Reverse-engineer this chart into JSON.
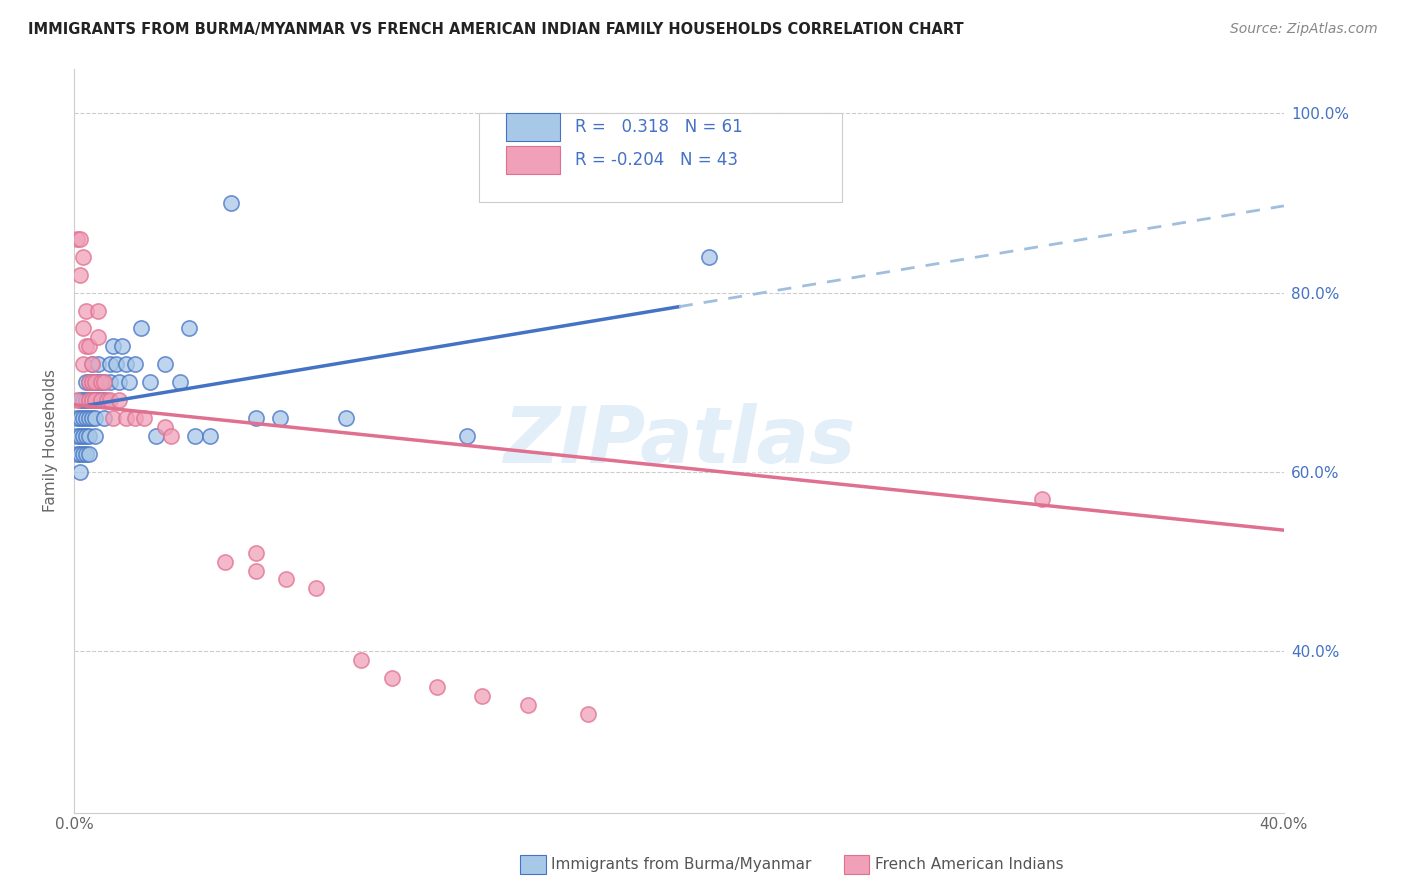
{
  "title": "IMMIGRANTS FROM BURMA/MYANMAR VS FRENCH AMERICAN INDIAN FAMILY HOUSEHOLDS CORRELATION CHART",
  "source": "Source: ZipAtlas.com",
  "xlabel_legend1": "Immigrants from Burma/Myanmar",
  "xlabel_legend2": "French American Indians",
  "ylabel": "Family Households",
  "r1": 0.318,
  "n1": 61,
  "r2": -0.204,
  "n2": 43,
  "xlim": [
    0.0,
    0.4
  ],
  "ylim": [
    0.22,
    1.05
  ],
  "xtick_vals": [
    0.0,
    0.1,
    0.2,
    0.3,
    0.4
  ],
  "xtick_labels": [
    "0.0%",
    "",
    "",
    "",
    "40.0%"
  ],
  "ytick_vals": [
    0.4,
    0.6,
    0.8,
    1.0
  ],
  "ytick_labels_right": [
    "40.0%",
    "60.0%",
    "80.0%",
    "100.0%"
  ],
  "color_blue": "#A8C8E8",
  "color_pink": "#F0A0B8",
  "color_blue_line": "#4472C4",
  "color_pink_line": "#E07090",
  "color_blue_dashed": "#A0BEDE",
  "background": "#FFFFFF",
  "watermark": "ZIPatlas",
  "blue_x": [
    0.001,
    0.001,
    0.001,
    0.002,
    0.002,
    0.002,
    0.002,
    0.002,
    0.003,
    0.003,
    0.003,
    0.003,
    0.004,
    0.004,
    0.004,
    0.004,
    0.004,
    0.005,
    0.005,
    0.005,
    0.005,
    0.005,
    0.006,
    0.006,
    0.006,
    0.006,
    0.007,
    0.007,
    0.007,
    0.007,
    0.008,
    0.008,
    0.008,
    0.009,
    0.009,
    0.01,
    0.01,
    0.01,
    0.012,
    0.012,
    0.013,
    0.014,
    0.015,
    0.016,
    0.017,
    0.018,
    0.02,
    0.022,
    0.025,
    0.027,
    0.03,
    0.035,
    0.038,
    0.04,
    0.045,
    0.052,
    0.06,
    0.068,
    0.09,
    0.13,
    0.21
  ],
  "blue_y": [
    0.66,
    0.64,
    0.62,
    0.68,
    0.66,
    0.64,
    0.62,
    0.6,
    0.68,
    0.66,
    0.64,
    0.62,
    0.7,
    0.68,
    0.66,
    0.64,
    0.62,
    0.7,
    0.68,
    0.66,
    0.64,
    0.62,
    0.72,
    0.7,
    0.68,
    0.66,
    0.7,
    0.68,
    0.66,
    0.64,
    0.72,
    0.7,
    0.68,
    0.7,
    0.68,
    0.7,
    0.68,
    0.66,
    0.72,
    0.7,
    0.74,
    0.72,
    0.7,
    0.74,
    0.72,
    0.7,
    0.72,
    0.76,
    0.7,
    0.64,
    0.72,
    0.7,
    0.76,
    0.64,
    0.64,
    0.9,
    0.66,
    0.66,
    0.66,
    0.64,
    0.84
  ],
  "pink_x": [
    0.001,
    0.001,
    0.002,
    0.002,
    0.003,
    0.003,
    0.003,
    0.004,
    0.004,
    0.005,
    0.005,
    0.005,
    0.006,
    0.006,
    0.006,
    0.007,
    0.007,
    0.008,
    0.008,
    0.009,
    0.009,
    0.01,
    0.011,
    0.012,
    0.013,
    0.015,
    0.017,
    0.02,
    0.023,
    0.03,
    0.032,
    0.05,
    0.06,
    0.06,
    0.07,
    0.08,
    0.095,
    0.105,
    0.12,
    0.135,
    0.15,
    0.17,
    0.32
  ],
  "pink_y": [
    0.68,
    0.86,
    0.86,
    0.82,
    0.84,
    0.76,
    0.72,
    0.78,
    0.74,
    0.74,
    0.7,
    0.68,
    0.72,
    0.7,
    0.68,
    0.7,
    0.68,
    0.78,
    0.75,
    0.7,
    0.68,
    0.7,
    0.68,
    0.68,
    0.66,
    0.68,
    0.66,
    0.66,
    0.66,
    0.65,
    0.64,
    0.5,
    0.51,
    0.49,
    0.48,
    0.47,
    0.39,
    0.37,
    0.36,
    0.35,
    0.34,
    0.33,
    0.57
  ]
}
